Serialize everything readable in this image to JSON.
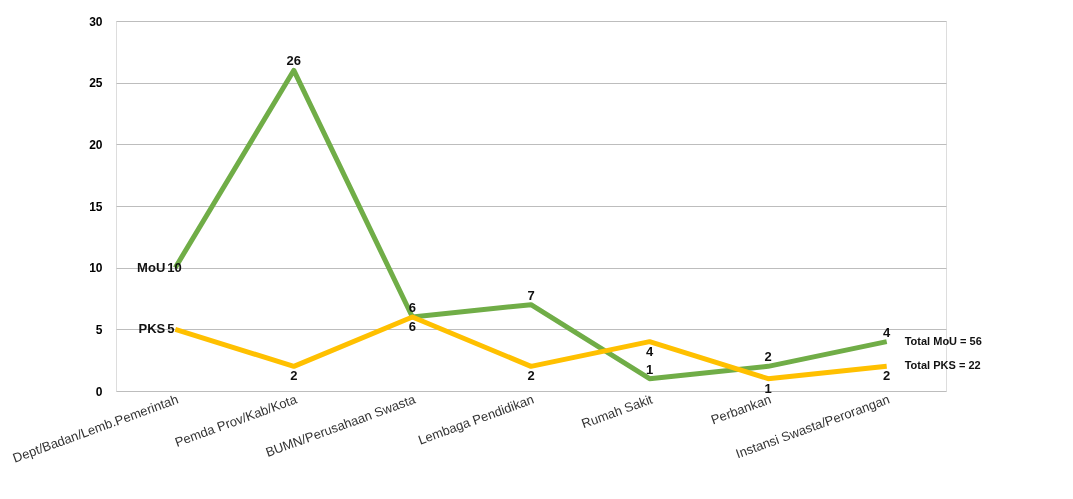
{
  "chart_data": {
    "type": "line",
    "categories": [
      "Dept/Badan/Lemb.Pemerintah",
      "Pemda Prov/Kab/Kota",
      "BUMN/Perusahaan Swasta",
      "Lembaga Pendidikan",
      "Rumah Sakit",
      "Perbankan",
      "Instansi Swasta/Perorangan"
    ],
    "series": [
      {
        "name": "MoU",
        "color": "#70ad47",
        "values": [
          10,
          26,
          6,
          7,
          1,
          2,
          4
        ]
      },
      {
        "name": "PKS",
        "color": "#ffc000",
        "values": [
          5,
          2,
          6,
          2,
          4,
          1,
          2
        ]
      }
    ],
    "ylim": [
      0,
      30
    ],
    "yticks": [
      0,
      5,
      10,
      15,
      20,
      25,
      30
    ],
    "grid": "y",
    "legend": false,
    "data_labels": true,
    "marker": "none",
    "line_style": "solid",
    "annotations": [
      {
        "text": "Total MoU = 56",
        "x": "Instansi Swasta/Perorangan",
        "y": 4
      },
      {
        "text": "Total PKS = 22",
        "x": "Instansi Swasta/Perorangan",
        "y": 2
      }
    ]
  }
}
